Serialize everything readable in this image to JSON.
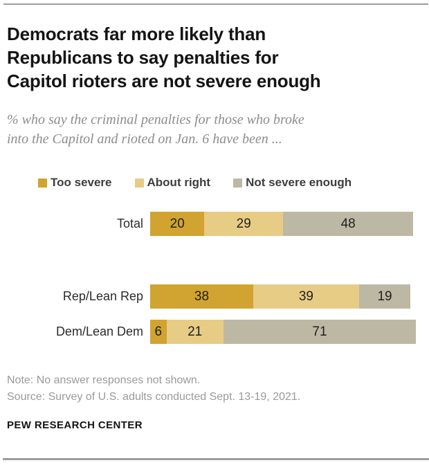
{
  "page": {
    "title_lines": [
      "Democrats far more likely than",
      "Republicans to say penalties for",
      "Capitol rioters are not severe enough"
    ],
    "subtitle_lines": [
      "% who say the criminal penalties for those who broke",
      "into the Capitol and rioted on Jan. 6 have been ..."
    ],
    "note": "Note: No answer responses not shown.",
    "source": "Source: Survey of U.S. adults conducted Sept. 13-19, 2021.",
    "brand": "PEW RESEARCH CENTER"
  },
  "colors": {
    "too_severe": "#d1a330",
    "about_right": "#e7cc85",
    "not_severe_enough": "#bdb8a3",
    "rule_gray": "#9c9c9c",
    "title_text": "#141414",
    "subtitle_text": "#8c8c8c",
    "note_text": "#9a9a99"
  },
  "chart_data": {
    "type": "bar",
    "subtype": "horizontal-stacked",
    "unit": "percent",
    "xlim": [
      0,
      100
    ],
    "legend_position": "top",
    "value_labels": "inside",
    "categories": [
      "Total",
      "Rep/Lean Rep",
      "Dem/Lean Dem"
    ],
    "series": [
      {
        "name": "Too severe",
        "color": "#d1a330",
        "values": [
          20,
          38,
          6
        ]
      },
      {
        "name": "About right",
        "color": "#e7cc85",
        "values": [
          29,
          39,
          21
        ]
      },
      {
        "name": "Not severe enough",
        "color": "#bdb8a3",
        "values": [
          48,
          19,
          71
        ]
      }
    ]
  }
}
